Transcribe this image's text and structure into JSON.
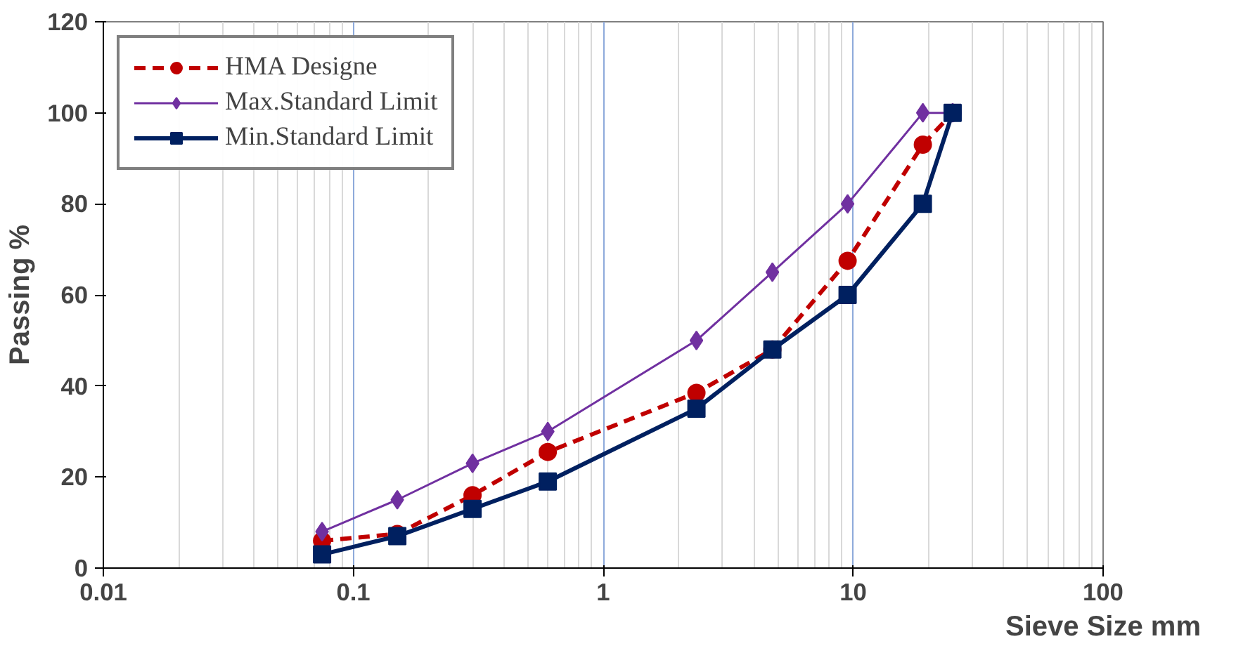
{
  "chart_data": {
    "type": "line",
    "xlabel": "Sieve Size mm",
    "ylabel": "Passing %",
    "x": [
      0.075,
      0.15,
      0.3,
      0.6,
      2.36,
      4.75,
      9.5,
      19,
      25
    ],
    "series": [
      {
        "name": "HMA Designe",
        "color": "#c00000",
        "marker": "circle",
        "line_style": "dashed",
        "values": [
          6,
          7.5,
          16,
          25.5,
          38.5,
          48,
          67.5,
          93,
          100
        ]
      },
      {
        "name": "Max.Standard Limit",
        "color": "#7030a0",
        "marker": "diamond",
        "line_style": "solid",
        "values": [
          8,
          15,
          23,
          30,
          50,
          65,
          80,
          100,
          100
        ]
      },
      {
        "name": "Min.Standard Limit",
        "color": "#002060",
        "marker": "square",
        "line_style": "solid",
        "values": [
          3,
          7,
          13,
          19,
          35,
          48,
          60,
          80,
          100
        ]
      }
    ],
    "log": "x",
    "xlim": [
      0.01,
      100
    ],
    "xticks": [
      0.01,
      0.1,
      1,
      10,
      100
    ],
    "ylim": [
      0,
      120
    ],
    "yticks": [
      0,
      20,
      40,
      60,
      80,
      100,
      120
    ],
    "grid": "x",
    "legend": "top left"
  }
}
